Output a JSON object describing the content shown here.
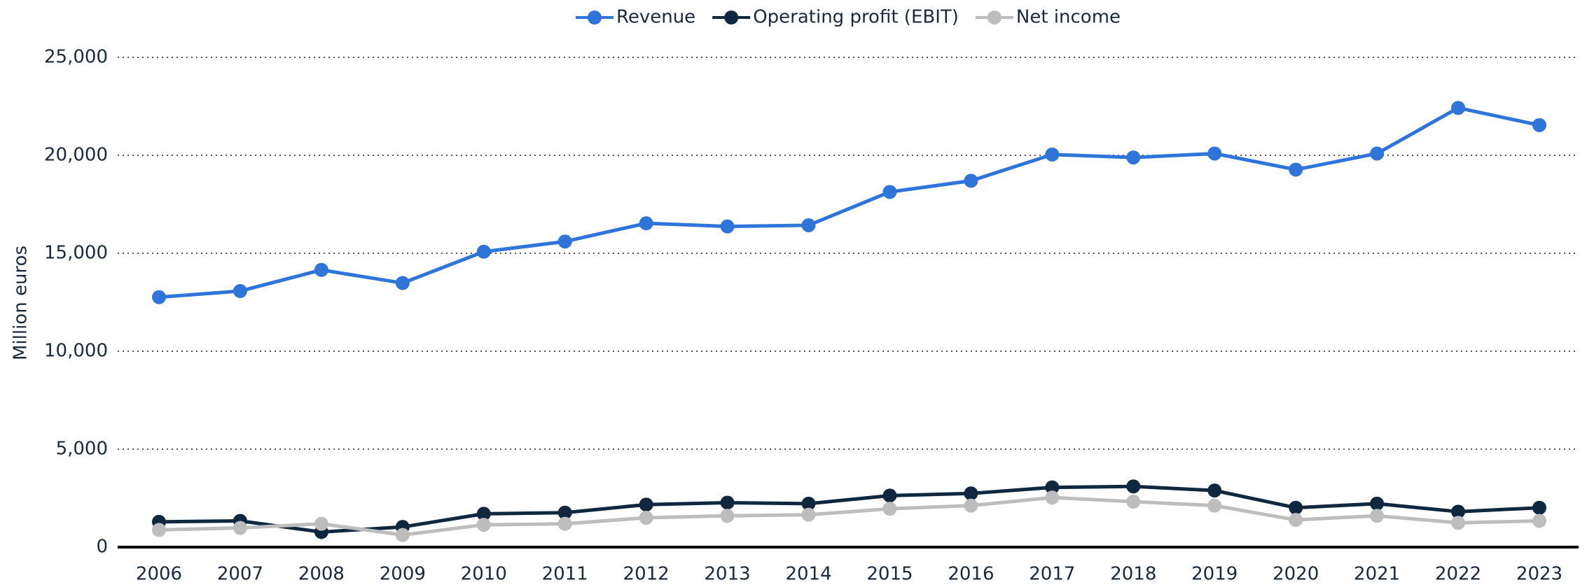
{
  "chart_data": {
    "type": "line",
    "y_label": "Million euros",
    "categories": [
      "2006",
      "2007",
      "2008",
      "2009",
      "2010",
      "2011",
      "2012",
      "2013",
      "2014",
      "2015",
      "2016",
      "2017",
      "2018",
      "2019",
      "2020",
      "2021",
      "2022",
      "2023"
    ],
    "series": [
      {
        "name": "Revenue",
        "color": "#2f74d8",
        "values": [
          12760,
          13070,
          14150,
          13480,
          15080,
          15600,
          16530,
          16370,
          16430,
          18130,
          18700,
          20040,
          19890,
          20090,
          19270,
          20090,
          22420,
          21540
        ]
      },
      {
        "name": "Operating profit (EBIT)",
        "color": "#0f2840",
        "values": [
          1290,
          1340,
          770,
          1030,
          1700,
          1760,
          2170,
          2270,
          2220,
          2630,
          2740,
          3050,
          3100,
          2890,
          2010,
          2220,
          1810,
          2010
        ]
      },
      {
        "name": "Net income",
        "color": "#bdbdbd",
        "values": [
          880,
          980,
          1190,
          620,
          1140,
          1190,
          1500,
          1600,
          1650,
          1960,
          2120,
          2530,
          2320,
          2120,
          1390,
          1600,
          1240,
          1340
        ]
      }
    ],
    "ylim": [
      0,
      25000
    ],
    "yticks": [
      0,
      {
        "value": 5000,
        "label": "5,000"
      },
      {
        "value": 10000,
        "label": "10,000"
      },
      {
        "value": 15000,
        "label": "15,000"
      },
      {
        "value": 20000,
        "label": "20,000"
      },
      {
        "value": 25000,
        "label": "25,000"
      }
    ],
    "grid": true,
    "legend": "top"
  }
}
